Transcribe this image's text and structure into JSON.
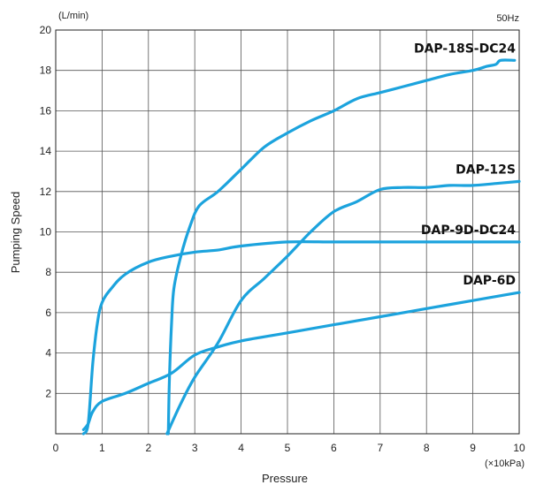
{
  "chart_data": {
    "type": "line",
    "xlabel": "Pressure",
    "ylabel": "Pumping Speed",
    "x_unit": "(×10kPa)",
    "y_unit": "(L/min)",
    "frequency": "50Hz",
    "xlim": [
      0,
      10
    ],
    "ylim": [
      0,
      20
    ],
    "x_ticks": [
      "0",
      "1",
      "2",
      "3",
      "4",
      "5",
      "6",
      "7",
      "8",
      "9",
      "10"
    ],
    "y_ticks": [
      "2",
      "4",
      "6",
      "8",
      "10",
      "12",
      "14",
      "16",
      "18",
      "20"
    ],
    "grid": true,
    "line_color": "#1ca3dd",
    "series": [
      {
        "name": "DAP-18S-DC24",
        "points": [
          [
            2.43,
            0
          ],
          [
            2.45,
            2.5
          ],
          [
            2.5,
            5.5
          ],
          [
            2.55,
            7.2
          ],
          [
            2.7,
            8.8
          ],
          [
            2.9,
            10.3
          ],
          [
            3.1,
            11.3
          ],
          [
            3.5,
            12.0
          ],
          [
            4.0,
            13.1
          ],
          [
            4.5,
            14.2
          ],
          [
            5.0,
            14.9
          ],
          [
            5.5,
            15.5
          ],
          [
            6.0,
            16.0
          ],
          [
            6.5,
            16.6
          ],
          [
            7.0,
            16.9
          ],
          [
            7.5,
            17.2
          ],
          [
            8.0,
            17.5
          ],
          [
            8.5,
            17.8
          ],
          [
            9.0,
            18.0
          ],
          [
            9.3,
            18.2
          ],
          [
            9.5,
            18.3
          ],
          [
            9.6,
            18.5
          ],
          [
            9.9,
            18.5
          ]
        ]
      },
      {
        "name": "DAP-12S",
        "points": [
          [
            2.4,
            0
          ],
          [
            2.7,
            1.5
          ],
          [
            3.0,
            2.8
          ],
          [
            3.5,
            4.5
          ],
          [
            4.0,
            6.6
          ],
          [
            4.5,
            7.7
          ],
          [
            5.0,
            8.8
          ],
          [
            5.5,
            10.0
          ],
          [
            6.0,
            11.0
          ],
          [
            6.5,
            11.5
          ],
          [
            7.0,
            12.1
          ],
          [
            7.5,
            12.2
          ],
          [
            8.0,
            12.2
          ],
          [
            8.5,
            12.3
          ],
          [
            9.0,
            12.3
          ],
          [
            9.5,
            12.4
          ],
          [
            10.0,
            12.5
          ]
        ]
      },
      {
        "name": "DAP-9D-DC24",
        "points": [
          [
            0.6,
            0
          ],
          [
            0.7,
            0.5
          ],
          [
            0.8,
            3.5
          ],
          [
            0.9,
            5.5
          ],
          [
            1.0,
            6.5
          ],
          [
            1.2,
            7.2
          ],
          [
            1.5,
            7.9
          ],
          [
            2.0,
            8.5
          ],
          [
            2.5,
            8.8
          ],
          [
            3.0,
            9.0
          ],
          [
            3.5,
            9.1
          ],
          [
            4.0,
            9.3
          ],
          [
            5.0,
            9.5
          ],
          [
            6.0,
            9.5
          ],
          [
            7.0,
            9.5
          ],
          [
            8.0,
            9.5
          ],
          [
            9.0,
            9.5
          ],
          [
            10.0,
            9.5
          ]
        ]
      },
      {
        "name": "DAP-6D",
        "points": [
          [
            0.6,
            0.2
          ],
          [
            0.7,
            0.5
          ],
          [
            0.8,
            1.1
          ],
          [
            1.0,
            1.6
          ],
          [
            1.5,
            2.0
          ],
          [
            2.0,
            2.5
          ],
          [
            2.5,
            3.0
          ],
          [
            3.0,
            3.9
          ],
          [
            3.5,
            4.3
          ],
          [
            4.0,
            4.6
          ],
          [
            5.0,
            5.0
          ],
          [
            6.0,
            5.4
          ],
          [
            7.0,
            5.8
          ],
          [
            8.0,
            6.2
          ],
          [
            9.0,
            6.6
          ],
          [
            10.0,
            7.0
          ]
        ]
      }
    ]
  }
}
